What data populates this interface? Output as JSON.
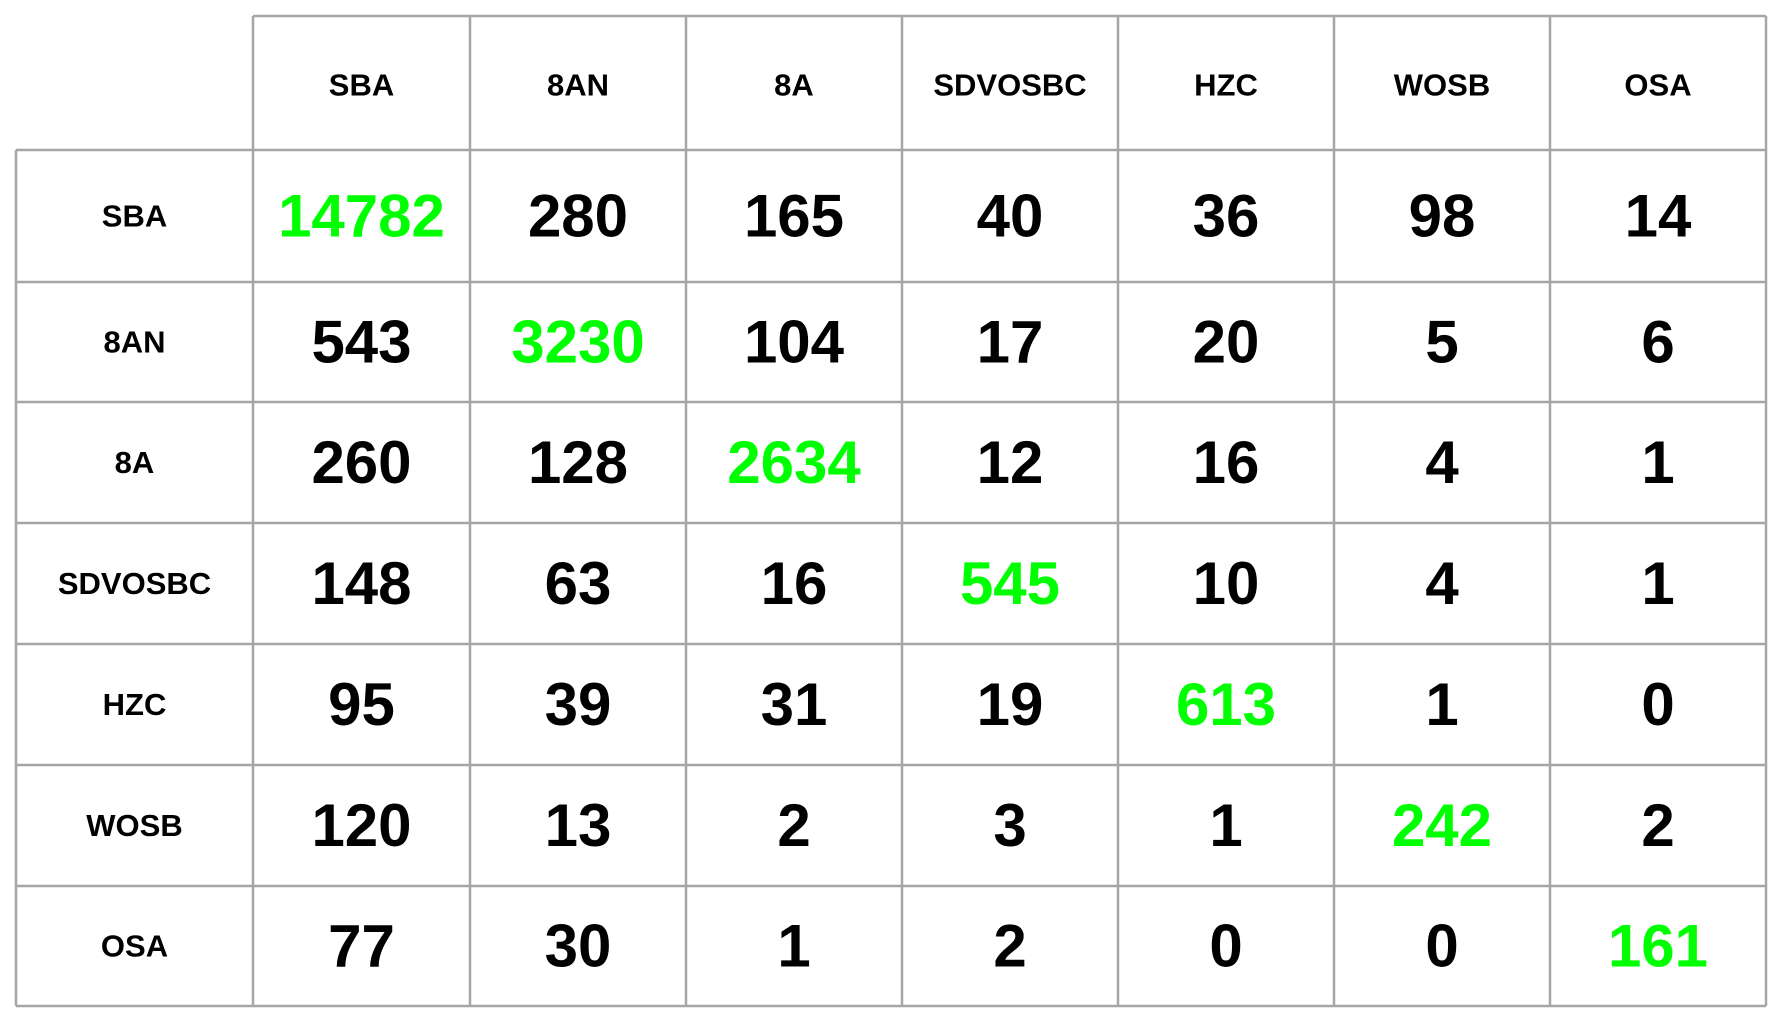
{
  "chart_data": {
    "type": "table",
    "title": "",
    "columns": [
      "SBA",
      "8AN",
      "8A",
      "SDVOSBC",
      "HZC",
      "WOSB",
      "OSA"
    ],
    "rows": [
      "SBA",
      "8AN",
      "8A",
      "SDVOSBC",
      "HZC",
      "WOSB",
      "OSA"
    ],
    "values": [
      [
        14782,
        280,
        165,
        40,
        36,
        98,
        14
      ],
      [
        543,
        3230,
        104,
        17,
        20,
        5,
        6
      ],
      [
        260,
        128,
        2634,
        12,
        16,
        4,
        1
      ],
      [
        148,
        63,
        16,
        545,
        10,
        4,
        1
      ],
      [
        95,
        39,
        31,
        19,
        613,
        1,
        0
      ],
      [
        120,
        13,
        2,
        3,
        1,
        242,
        2
      ],
      [
        77,
        30,
        1,
        2,
        0,
        0,
        161
      ]
    ],
    "colors": {
      "diagonal": "#00ff00",
      "text": "#000000",
      "grid": "#a6a6a6"
    }
  }
}
